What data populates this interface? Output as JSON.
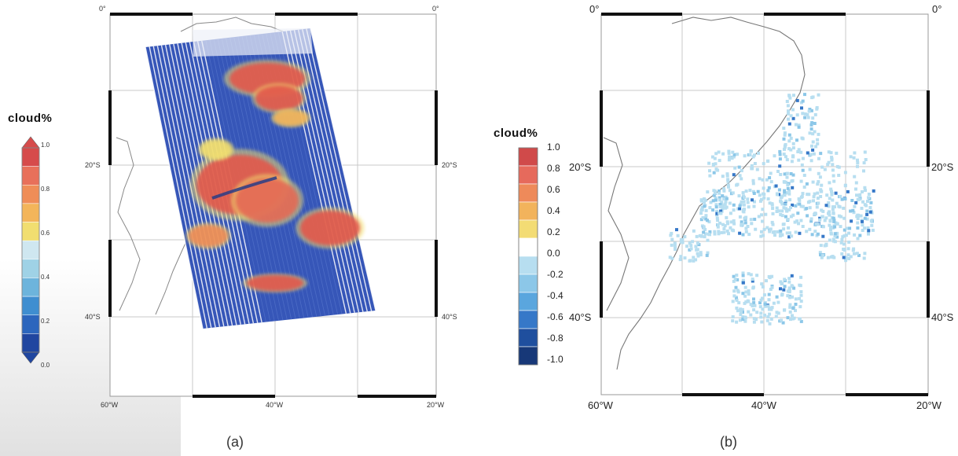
{
  "panel_a": {
    "caption": "(a)",
    "lon_labels_bottom": [
      "60°W",
      "40°W",
      "20°W"
    ],
    "lon_label_top_left": "0°",
    "lon_label_top_right": "0°",
    "lat_labels_left": [
      "20°S",
      "40°S"
    ],
    "lat_labels_right": [
      "20°S",
      "40°S"
    ],
    "colorbar": {
      "title": "cloud%",
      "ticks": [
        "1.0",
        "0.8",
        "0.6",
        "0.4",
        "0.2",
        "0.0"
      ],
      "colors": [
        "#d64b4b",
        "#e8705a",
        "#ef8d57",
        "#f3b55a",
        "#f1de70",
        "#cfe7f0",
        "#9fd2e6",
        "#6db4dc",
        "#3f8ed0",
        "#2c66bd",
        "#2046a0"
      ]
    }
  },
  "panel_b": {
    "caption": "(b)",
    "lon_labels_bottom": [
      "60°W",
      "40°W",
      "20°W"
    ],
    "lon_label_top_left": "0°",
    "lon_label_top_right": "0°",
    "lat_labels_left": [
      "20°S",
      "40°S"
    ],
    "lat_labels_right": [
      "20°S",
      "40°S"
    ],
    "colorbar": {
      "title": "cloud%",
      "ticks": [
        "1.0",
        "0.8",
        "0.6",
        "0.4",
        "0.2",
        "0.0",
        "-0.2",
        "-0.4",
        "-0.6",
        "-0.8",
        "-1.0"
      ],
      "colors": [
        "#d04a4a",
        "#e66a5c",
        "#ee8a5a",
        "#f2b35c",
        "#f3dc74",
        "#ffffff",
        "#b7def0",
        "#8cc7e8",
        "#5aa6de",
        "#3678c8",
        "#1f4f9e",
        "#173878"
      ]
    }
  }
}
